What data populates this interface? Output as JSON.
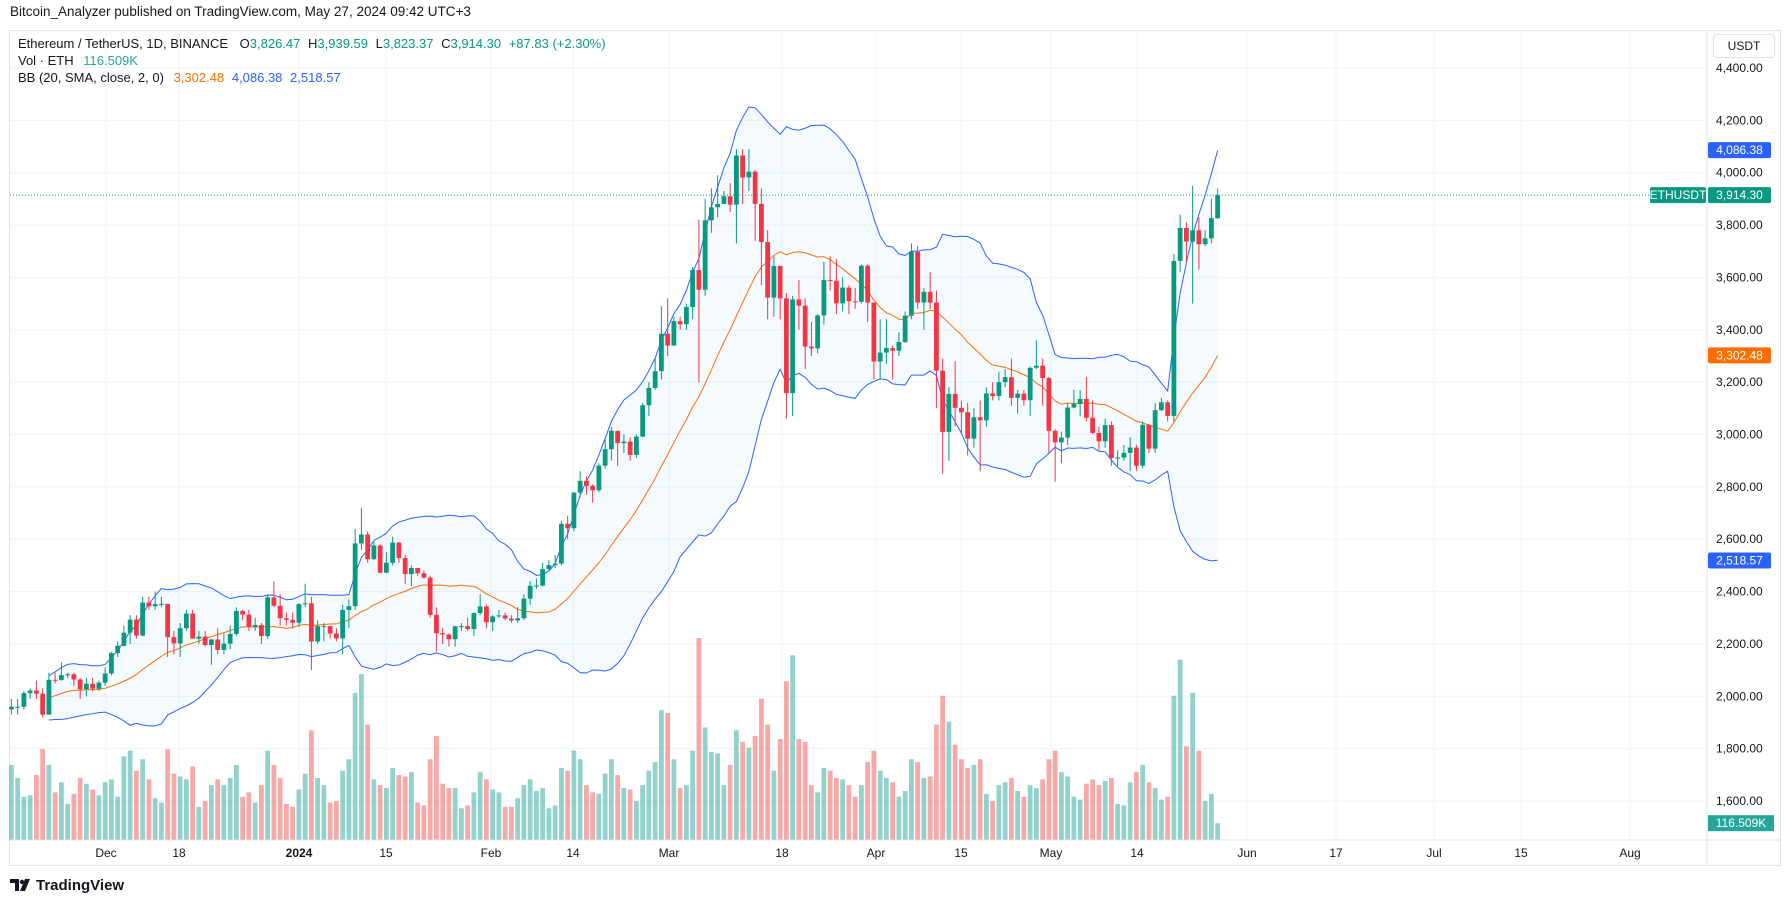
{
  "publisher_line": "Bitcoin_Analyzer published on TradingView.com, May 27, 2024 09:42 UTC+3",
  "legend": {
    "symbol": "Ethereum / TetherUS, 1D, BINANCE",
    "open_label": "O",
    "open": "3,826.47",
    "high_label": "H",
    "high": "3,939.59",
    "low_label": "L",
    "low": "3,823.37",
    "close_label": "C",
    "close": "3,914.30",
    "change": "+87.83 (+2.30%)",
    "vol_label": "Vol · ETH",
    "vol_value": "116.509K",
    "bb_label": "BB (20, SMA, close, 2, 0)",
    "bb_basis": "3,302.48",
    "bb_upper": "4,086.38",
    "bb_lower": "2,518.57"
  },
  "currency_button": "USDT",
  "logo_text": "TradingView",
  "colors": {
    "up": "#089981",
    "down": "#f23645",
    "vol_up": "#26a69a",
    "vol_down": "#ef5350",
    "bb_band": "#2962ff",
    "bb_basis": "#ff6d00"
  },
  "badges": {
    "symbol_tag": "ETHUSDT",
    "last_price": "3,914.30",
    "bb_upper": "4,086.38",
    "bb_basis": "3,302.48",
    "bb_lower": "2,518.57",
    "volume": "116.509K"
  },
  "chart_data": {
    "type": "candlestick",
    "symbol": "ETHUSDT",
    "interval": "1D",
    "first_date": "2023-11-16",
    "last_date": "2024-05-27",
    "ylim": [
      1550,
      4480
    ],
    "y_ticks": [
      "4,400.00",
      "4,200.00",
      "4,000.00",
      "3,800.00",
      "3,600.00",
      "3,400.00",
      "3,200.00",
      "3,000.00",
      "2,800.00",
      "2,600.00",
      "2,400.00",
      "2,200.00",
      "2,000.00",
      "1,800.00",
      "1,600.00"
    ],
    "x_ticks": [
      "Dec",
      "18",
      "2024",
      "15",
      "Feb",
      "14",
      "Mar",
      "18",
      "Apr",
      "15",
      "May",
      "14",
      "Jun",
      "17",
      "Jul",
      "15",
      "Aug"
    ],
    "grid": true,
    "first_open": 1950,
    "close": [
      1960,
      1960,
      2012,
      2022,
      2010,
      1930,
      2063,
      2062,
      2081,
      2084,
      2064,
      2027,
      2048,
      2029,
      2052,
      2087,
      2165,
      2193,
      2243,
      2293,
      2232,
      2358,
      2344,
      2352,
      2353,
      2226,
      2202,
      2260,
      2316,
      2220,
      2228,
      2196,
      2217,
      2177,
      2201,
      2238,
      2326,
      2312,
      2265,
      2272,
      2230,
      2378,
      2346,
      2298,
      2292,
      2281,
      2352,
      2355,
      2209,
      2268,
      2268,
      2240,
      2221,
      2330,
      2344,
      2584,
      2618,
      2524,
      2576,
      2472,
      2510,
      2587,
      2528,
      2467,
      2490,
      2470,
      2453,
      2311,
      2241,
      2236,
      2218,
      2267,
      2268,
      2257,
      2318,
      2343,
      2283,
      2305,
      2309,
      2297,
      2290,
      2298,
      2373,
      2422,
      2423,
      2486,
      2501,
      2507,
      2659,
      2642,
      2778,
      2823,
      2804,
      2787,
      2881,
      2944,
      3014,
      2967,
      2973,
      2922,
      2992,
      3112,
      3178,
      3242,
      3385,
      3340,
      3433,
      3421,
      3487,
      3628,
      3553,
      3818,
      3868,
      3881,
      3910,
      3878,
      4066,
      3982,
      4004,
      3881,
      3735,
      3523,
      3644,
      3520,
      3158,
      3516,
      3492,
      3336,
      3329,
      3455,
      3590,
      3587,
      3501,
      3561,
      3509,
      3507,
      3645,
      3504,
      3279,
      3313,
      3330,
      3320,
      3353,
      3454,
      3698,
      3504,
      3545,
      3504,
      3244,
      3010,
      3155,
      3102,
      3085,
      2984,
      3066,
      3054,
      3157,
      3147,
      3200,
      3219,
      3140,
      3156,
      3131,
      3255,
      3263,
      3216,
      3014,
      2970,
      2988,
      3103,
      3117,
      3136,
      3064,
      3006,
      2974,
      3036,
      2910,
      2912,
      2930,
      2950,
      2881,
      3037,
      2946,
      3093,
      3123,
      3071,
      3663,
      3789,
      3737,
      3780,
      3727,
      3749,
      3826.47,
      3914.3
    ],
    "high": [
      1990,
      1990,
      2020,
      2030,
      2060,
      2030,
      2090,
      2090,
      2130,
      2090,
      2090,
      2070,
      2070,
      2070,
      2060,
      2110,
      2170,
      2210,
      2270,
      2310,
      2310,
      2380,
      2380,
      2400,
      2380,
      2350,
      2250,
      2280,
      2330,
      2330,
      2250,
      2250,
      2220,
      2260,
      2240,
      2270,
      2340,
      2330,
      2330,
      2300,
      2280,
      2390,
      2440,
      2390,
      2320,
      2320,
      2355,
      2430,
      2380,
      2290,
      2280,
      2270,
      2260,
      2350,
      2370,
      2640,
      2720,
      2630,
      2590,
      2580,
      2550,
      2610,
      2590,
      2540,
      2500,
      2490,
      2480,
      2460,
      2340,
      2260,
      2240,
      2270,
      2280,
      2300,
      2320,
      2390,
      2350,
      2310,
      2330,
      2320,
      2310,
      2340,
      2390,
      2440,
      2450,
      2510,
      2520,
      2540,
      2670,
      2690,
      2780,
      2860,
      2840,
      2810,
      2890,
      2980,
      3030,
      3010,
      3000,
      2990,
      3000,
      3120,
      3200,
      3290,
      3490,
      3520,
      3450,
      3450,
      3500,
      3640,
      3820,
      3900,
      3940,
      3990,
      3930,
      3960,
      4090,
      4090,
      4090,
      4010,
      3940,
      3780,
      3680,
      3640,
      3540,
      3530,
      3590,
      3520,
      3430,
      3460,
      3660,
      3680,
      3670,
      3600,
      3570,
      3560,
      3650,
      3650,
      3500,
      3440,
      3440,
      3340,
      3390,
      3470,
      3730,
      3720,
      3560,
      3620,
      3550,
      3290,
      3180,
      3280,
      3130,
      3120,
      3100,
      3130,
      3180,
      3200,
      3240,
      3250,
      3290,
      3170,
      3170,
      3260,
      3360,
      3290,
      3220,
      3020,
      3010,
      3120,
      3170,
      3170,
      3220,
      3130,
      3030,
      3060,
      3050,
      2940,
      2960,
      2990,
      2960,
      3050,
      3040,
      3120,
      3140,
      3130,
      3690,
      3840,
      3810,
      3950,
      3830,
      3780,
      3900,
      3939.59
    ],
    "low": [
      1930,
      1930,
      1950,
      1990,
      1990,
      1920,
      1930,
      2050,
      2060,
      2070,
      2040,
      1990,
      2000,
      2020,
      2020,
      2040,
      2080,
      2150,
      2190,
      2200,
      2220,
      2230,
      2330,
      2330,
      2340,
      2150,
      2160,
      2150,
      2250,
      2220,
      2200,
      2190,
      2120,
      2160,
      2160,
      2180,
      2230,
      2290,
      2250,
      2250,
      2200,
      2220,
      2340,
      2270,
      2270,
      2260,
      2265,
      2340,
      2100,
      2200,
      2210,
      2220,
      2210,
      2160,
      2260,
      2330,
      2560,
      2510,
      2520,
      2470,
      2470,
      2500,
      2510,
      2430,
      2420,
      2460,
      2450,
      2300,
      2170,
      2200,
      2190,
      2190,
      2250,
      2250,
      2230,
      2310,
      2260,
      2250,
      2300,
      2290,
      2280,
      2280,
      2290,
      2350,
      2410,
      2420,
      2480,
      2490,
      2500,
      2600,
      2630,
      2760,
      2770,
      2740,
      2780,
      2870,
      2900,
      2880,
      2930,
      2900,
      2910,
      2990,
      3070,
      3170,
      3210,
      3300,
      3340,
      3400,
      3400,
      3440,
      3200,
      3530,
      3770,
      3830,
      3880,
      3850,
      3730,
      3880,
      3930,
      3740,
      3570,
      3440,
      3450,
      3440,
      3060,
      3070,
      3400,
      3250,
      3300,
      3310,
      3420,
      3550,
      3460,
      3470,
      3460,
      3480,
      3500,
      3430,
      3210,
      3210,
      3270,
      3210,
      3300,
      3350,
      3440,
      3480,
      3400,
      3480,
      3100,
      2850,
      2900,
      3030,
      3000,
      2920,
      2950,
      2860,
      3030,
      3130,
      3130,
      3180,
      3110,
      3080,
      3110,
      3070,
      3250,
      3110,
      2930,
      2820,
      2890,
      2960,
      3100,
      3070,
      3050,
      3000,
      2940,
      2950,
      2880,
      2880,
      2900,
      2860,
      2860,
      2870,
      2930,
      2930,
      3090,
      3050,
      3050,
      3620,
      3660,
      3500,
      3630,
      3720,
      3730,
      3823.37
    ],
    "volume_k": [
      520,
      430,
      300,
      310,
      450,
      630,
      520,
      330,
      400,
      250,
      320,
      430,
      390,
      350,
      310,
      400,
      420,
      300,
      580,
      620,
      480,
      560,
      420,
      290,
      260,
      630,
      460,
      440,
      420,
      510,
      230,
      270,
      380,
      420,
      380,
      430,
      520,
      300,
      330,
      260,
      380,
      620,
      520,
      430,
      250,
      230,
      350,
      460,
      760,
      430,
      380,
      260,
      270,
      480,
      560,
      1020,
      1150,
      800,
      420,
      380,
      360,
      500,
      450,
      440,
      470,
      260,
      240,
      560,
      720,
      390,
      360,
      360,
      220,
      240,
      330,
      470,
      420,
      350,
      330,
      230,
      230,
      290,
      380,
      420,
      340,
      360,
      220,
      240,
      500,
      480,
      620,
      560,
      380,
      330,
      320,
      460,
      560,
      450,
      360,
      350,
      270,
      380,
      480,
      540,
      900,
      880,
      560,
      360,
      380,
      620,
      1400,
      780,
      610,
      600,
      380,
      520,
      760,
      680,
      640,
      720,
      980,
      800,
      480,
      700,
      1100,
      1280,
      700,
      680,
      380,
      330,
      500,
      480,
      430,
      420,
      380,
      300,
      380,
      540,
      620,
      480,
      430,
      400,
      300,
      340,
      560,
      540,
      430,
      440,
      800,
      1000,
      820,
      660,
      560,
      500,
      520,
      560,
      320,
      270,
      380,
      400,
      430,
      340,
      300,
      380,
      360,
      420,
      560,
      620,
      470,
      440,
      300,
      280,
      390,
      420,
      380,
      410,
      430,
      250,
      240,
      400,
      470,
      520,
      400,
      360,
      280,
      300,
      1000,
      1250,
      650,
      1020,
      620,
      270,
      320,
      116.509
    ],
    "indicator": {
      "name": "BB (20, SMA, close, 2, 0)",
      "basis": 3302.48,
      "upper": 4086.38,
      "lower": 2518.57
    }
  }
}
